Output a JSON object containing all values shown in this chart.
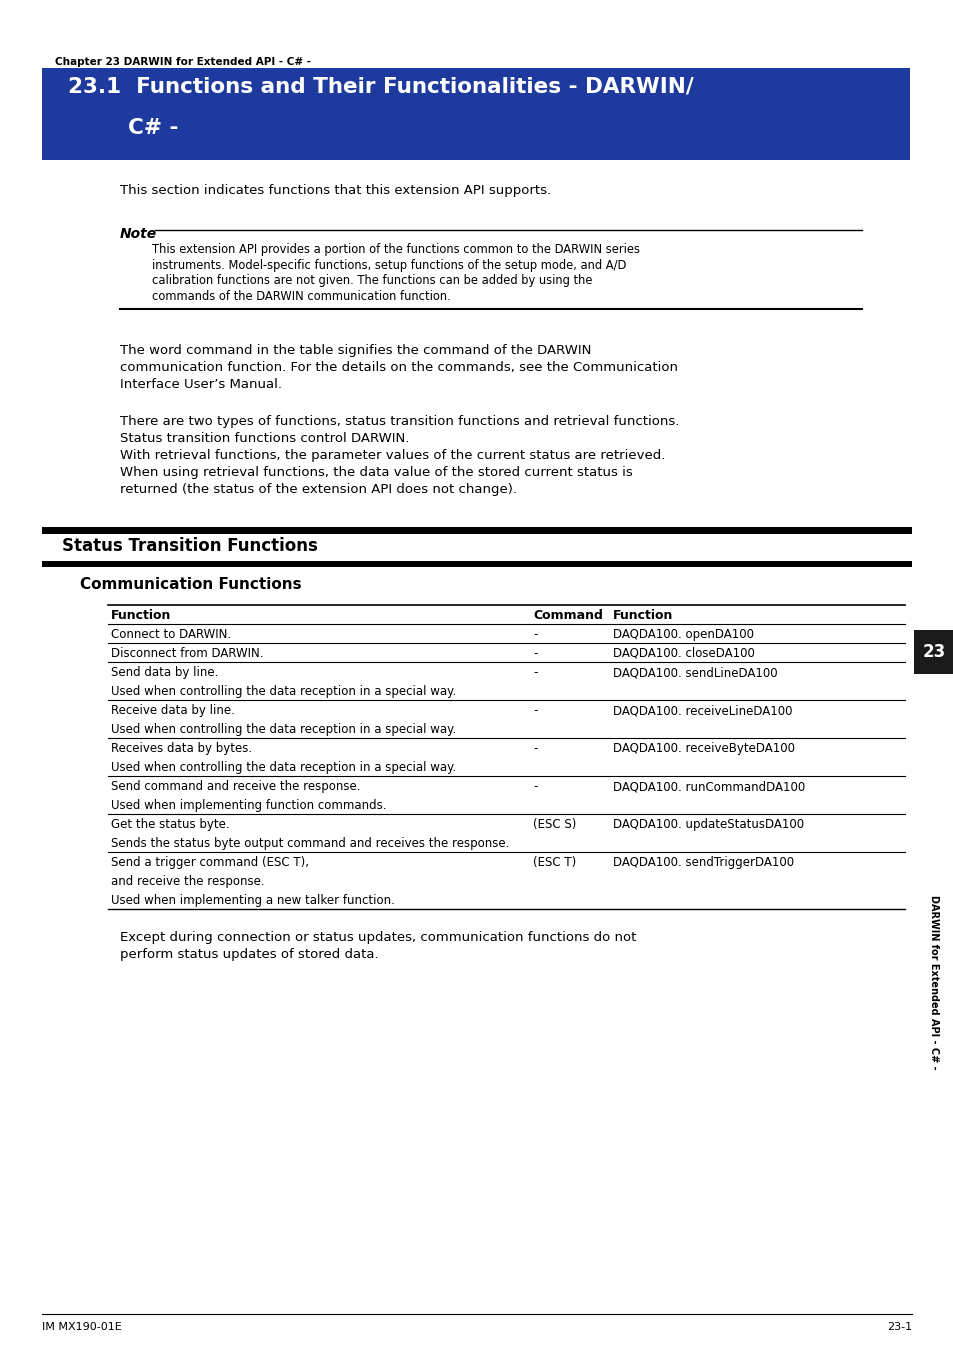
{
  "page_bg": "#ffffff",
  "chapter_label": "Chapter 23 DARWIN for Extended API - C# -",
  "section_title_line1": "23.1  Functions and Their Functionalities - DARWIN/",
  "section_title_line2": "        C# -",
  "section_title_bg": "#1e3a9e",
  "section_title_color": "#ffffff",
  "intro_text": "This section indicates functions that this extension API supports.",
  "note_label": "Note",
  "note_text_lines": [
    "This extension API provides a portion of the functions common to the DARWIN series",
    "instruments. Model-specific functions, setup functions of the setup mode, and A/D",
    "calibration functions are not given. The functions can be added by using the",
    "commands of the DARWIN communication function."
  ],
  "body_para1_lines": [
    "The word command in the table signifies the command of the DARWIN",
    "communication function. For the details on the commands, see the Communication",
    "Interface User’s Manual."
  ],
  "body_para2_lines": [
    "There are two types of functions, status transition functions and retrieval functions.",
    "Status transition functions control DARWIN.",
    "With retrieval functions, the parameter values of the current status are retrieved.",
    "When using retrieval functions, the data value of the stored current status is",
    "returned (the status of the extension API does not change)."
  ],
  "section2_title": "Status Transition Functions",
  "subsection_title": "Communication Functions",
  "table_rows": [
    {
      "col0": "Function",
      "col1": "Command",
      "col2": "Function",
      "is_header": true,
      "has_line_above": true
    },
    {
      "col0": "Connect to DARWIN.",
      "col1": "-",
      "col2": "DAQDA100. openDA100",
      "is_header": false,
      "has_line_above": true
    },
    {
      "col0": "Disconnect from DARWIN.",
      "col1": "-",
      "col2": "DAQDA100. closeDA100",
      "is_header": false,
      "has_line_above": true
    },
    {
      "col0": "Send data by line.",
      "col1": "-",
      "col2": "DAQDA100. sendLineDA100",
      "is_header": false,
      "has_line_above": true
    },
    {
      "col0": "Used when controlling the data reception in a special way.",
      "col1": "",
      "col2": "",
      "is_header": false,
      "has_line_above": false
    },
    {
      "col0": "Receive data by line.",
      "col1": "-",
      "col2": "DAQDA100. receiveLineDA100",
      "is_header": false,
      "has_line_above": true
    },
    {
      "col0": "Used when controlling the data reception in a special way.",
      "col1": "",
      "col2": "",
      "is_header": false,
      "has_line_above": false
    },
    {
      "col0": "Receives data by bytes.",
      "col1": "-",
      "col2": "DAQDA100. receiveByteDA100",
      "is_header": false,
      "has_line_above": true
    },
    {
      "col0": "Used when controlling the data reception in a special way.",
      "col1": "",
      "col2": "",
      "is_header": false,
      "has_line_above": false
    },
    {
      "col0": "Send command and receive the response.",
      "col1": "-",
      "col2": "DAQDA100. runCommandDA100",
      "is_header": false,
      "has_line_above": true
    },
    {
      "col0": "Used when implementing function commands.",
      "col1": "",
      "col2": "",
      "is_header": false,
      "has_line_above": false
    },
    {
      "col0": "Get the status byte.",
      "col1": "(ESC S)",
      "col2": "DAQDA100. updateStatusDA100",
      "is_header": false,
      "has_line_above": true
    },
    {
      "col0": "Sends the status byte output command and receives the response.",
      "col1": "",
      "col2": "",
      "is_header": false,
      "has_line_above": false
    },
    {
      "col0": "Send a trigger command (ESC T),",
      "col1": "(ESC T)",
      "col2": "DAQDA100. sendTriggerDA100",
      "is_header": false,
      "has_line_above": true
    },
    {
      "col0": "and receive the response.",
      "col1": "",
      "col2": "",
      "is_header": false,
      "has_line_above": false
    },
    {
      "col0": "Used when implementing a new talker function.",
      "col1": "",
      "col2": "",
      "is_header": false,
      "has_line_above": false
    }
  ],
  "table_last_line": true,
  "bottom_text_lines": [
    "Except during connection or status updates, communication functions do not",
    "perform status updates of stored data."
  ],
  "footer_left": "IM MX190-01E",
  "footer_right": "23-1",
  "sidebar_text": "DARWIN for Extended API - C# -",
  "sidebar_num": "23"
}
